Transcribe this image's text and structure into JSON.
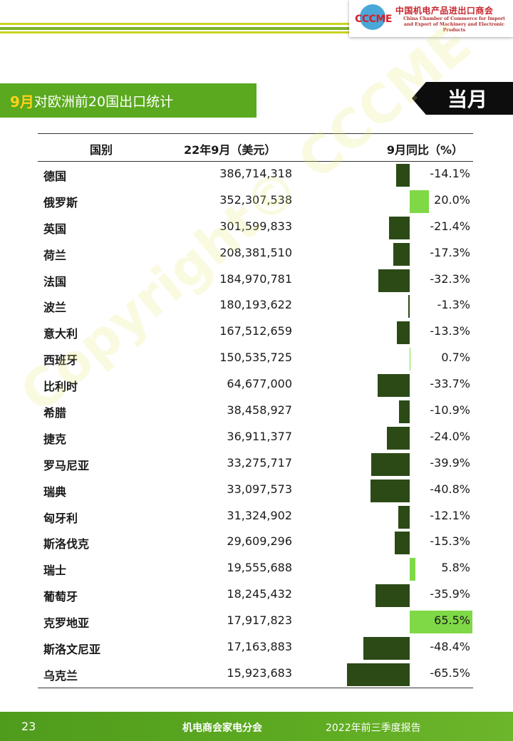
{
  "header": {
    "logo_mark_text": "CCCME",
    "logo_cn": "中国机电产品进出口商会",
    "logo_en_line1": "China Chamber of Commerce for Import",
    "logo_en_line2": "and Export of Machinery and Electronic Products"
  },
  "title": {
    "month": "9月",
    "rest": "对欧洲前20国出口统计",
    "badge": "当月"
  },
  "table": {
    "headers": {
      "country": "国别",
      "value": "22年9月（美元）",
      "yoy": "9月同比（%）"
    },
    "rows": [
      {
        "country": "德国",
        "value": "386,714,318",
        "yoy": "-14.1%",
        "yoy_num": -14.1
      },
      {
        "country": "俄罗斯",
        "value": "352,307,538",
        "yoy": "20.0%",
        "yoy_num": 20.0
      },
      {
        "country": "英国",
        "value": "301,599,833",
        "yoy": "-21.4%",
        "yoy_num": -21.4
      },
      {
        "country": "荷兰",
        "value": "208,381,510",
        "yoy": "-17.3%",
        "yoy_num": -17.3
      },
      {
        "country": "法国",
        "value": "184,970,781",
        "yoy": "-32.3%",
        "yoy_num": -32.3
      },
      {
        "country": "波兰",
        "value": "180,193,622",
        "yoy": "-1.3%",
        "yoy_num": -1.3
      },
      {
        "country": "意大利",
        "value": "167,512,659",
        "yoy": "-13.3%",
        "yoy_num": -13.3
      },
      {
        "country": "西班牙",
        "value": "150,535,725",
        "yoy": "0.7%",
        "yoy_num": 0.7
      },
      {
        "country": "比利时",
        "value": "64,677,000",
        "yoy": "-33.7%",
        "yoy_num": -33.7
      },
      {
        "country": "希腊",
        "value": "38,458,927",
        "yoy": "-10.9%",
        "yoy_num": -10.9
      },
      {
        "country": "捷克",
        "value": "36,911,377",
        "yoy": "-24.0%",
        "yoy_num": -24.0
      },
      {
        "country": "罗马尼亚",
        "value": "33,275,717",
        "yoy": "-39.9%",
        "yoy_num": -39.9
      },
      {
        "country": "瑞典",
        "value": "33,097,573",
        "yoy": "-40.8%",
        "yoy_num": -40.8
      },
      {
        "country": "匈牙利",
        "value": "31,324,902",
        "yoy": "-12.1%",
        "yoy_num": -12.1
      },
      {
        "country": "斯洛伐克",
        "value": "29,609,296",
        "yoy": "-15.3%",
        "yoy_num": -15.3
      },
      {
        "country": "瑞士",
        "value": "19,555,688",
        "yoy": "5.8%",
        "yoy_num": 5.8
      },
      {
        "country": "葡萄牙",
        "value": "18,245,432",
        "yoy": "-35.9%",
        "yoy_num": -35.9
      },
      {
        "country": "克罗地亚",
        "value": "17,917,823",
        "yoy": "65.5%",
        "yoy_num": 65.5
      },
      {
        "country": "斯洛文尼亚",
        "value": "17,163,883",
        "yoy": "-48.4%",
        "yoy_num": -48.4
      },
      {
        "country": "乌克兰",
        "value": "15,923,683",
        "yoy": "-65.5%",
        "yoy_num": -65.5
      }
    ],
    "bar_colors": {
      "negative": "#2c4a16",
      "positive": "#7fd946"
    }
  },
  "watermark": "Copyright© CCCME",
  "footer": {
    "page": "23",
    "org": "机电商会家电分会",
    "report": "2022年前三季度报告"
  }
}
